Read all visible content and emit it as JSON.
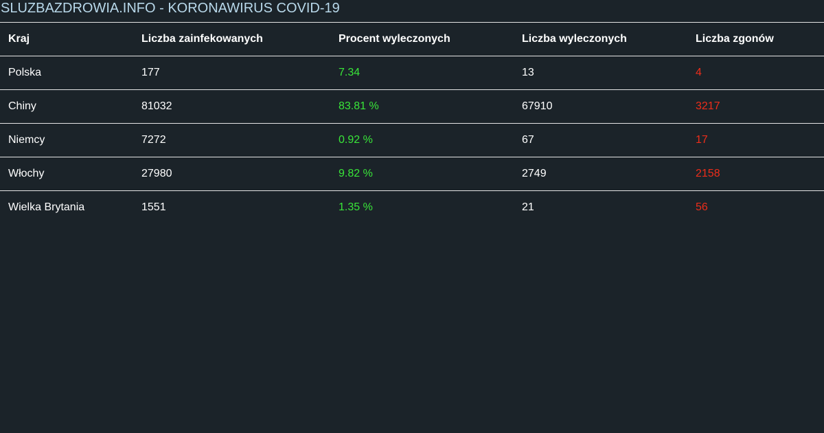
{
  "site": {
    "title": "SLUZBAZDROWIA.INFO - KORONAWIRUS COVID-19"
  },
  "colors": {
    "background": "#1b2329",
    "title": "#b8d8ea",
    "recovered": "#39e639",
    "deaths": "#ee2d1a"
  },
  "table": {
    "headers": {
      "country": "Kraj",
      "infected": "Liczba zainfekowanych",
      "recovered_percent": "Procent wyleczonych",
      "recovered": "Liczba wyleczonych",
      "deaths": "Liczba zgonów"
    },
    "rows": [
      {
        "country": "Polska",
        "infected": "177",
        "recovered_percent": "7.34",
        "recovered": "13",
        "deaths": "4"
      },
      {
        "country": "Chiny",
        "infected": "81032",
        "recovered_percent": "83.81 %",
        "recovered": "67910",
        "deaths": "3217"
      },
      {
        "country": "Niemcy",
        "infected": "7272",
        "recovered_percent": "0.92 %",
        "recovered": "67",
        "deaths": "17"
      },
      {
        "country": "Włochy",
        "infected": "27980",
        "recovered_percent": "9.82 %",
        "recovered": "2749",
        "deaths": "2158"
      },
      {
        "country": "Wielka Brytania",
        "infected": "1551",
        "recovered_percent": "1.35 %",
        "recovered": "21",
        "deaths": "56"
      }
    ]
  }
}
